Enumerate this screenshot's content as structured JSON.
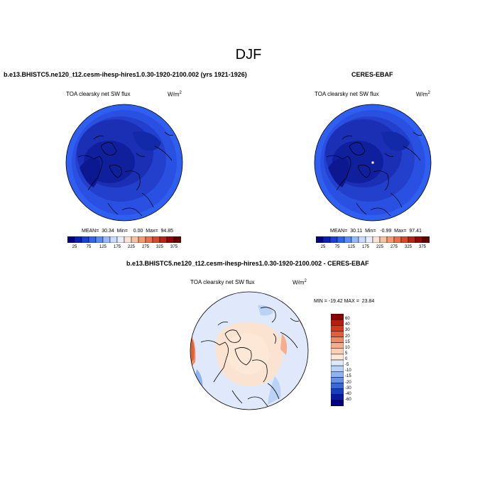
{
  "figure": {
    "title": "DJF"
  },
  "panels": [
    {
      "id": "model",
      "title": "b.e13.BHISTC5.ne120_t12.cesm-ihesp-hires1.0.30-1920-2100.002 (yrs 1921-1926)",
      "variable": "TOA clearsky net SW flux",
      "units_base": "W/m",
      "units_exp": "2",
      "stats": "MEAN=  30.34  Min=    0.00  Max=  94.85",
      "colorbar": {
        "levels": [
          "25",
          "75",
          "125",
          "175",
          "225",
          "275",
          "325",
          "375"
        ],
        "colors": [
          "#00007f",
          "#0a1eb4",
          "#1e40d2",
          "#3264e6",
          "#5a8cf0",
          "#96b9fa",
          "#c8dcff",
          "#e6eeff",
          "#fbe3d2",
          "#f8c1a3",
          "#f29a74",
          "#e8704c",
          "#d44a2d",
          "#b3261a",
          "#8c0a0a",
          "#600000"
        ]
      }
    },
    {
      "id": "obs",
      "title": "CERES-EBAF",
      "variable": "TOA clearsky net SW flux",
      "units_base": "W/m",
      "units_exp": "2",
      "stats": "MEAN=  30.11  Min=   -0.99  Max=  97.41",
      "colorbar": {
        "levels": [
          "25",
          "75",
          "125",
          "175",
          "225",
          "275",
          "325",
          "375"
        ],
        "colors": [
          "#00007f",
          "#0a1eb4",
          "#1e40d2",
          "#3264e6",
          "#5a8cf0",
          "#96b9fa",
          "#c8dcff",
          "#e6eeff",
          "#fbe3d2",
          "#f8c1a3",
          "#f29a74",
          "#e8704c",
          "#d44a2d",
          "#b3261a",
          "#8c0a0a",
          "#600000"
        ]
      }
    },
    {
      "id": "diff",
      "title": "b.e13.BHISTC5.ne120_t12.cesm-ihesp-hires1.0.30-1920-2100.002 - CERES-EBAF",
      "variable": "TOA clearsky net SW flux",
      "units_base": "W/m",
      "units_exp": "2",
      "stats": "MIN = -19.42 MAX =  23.84",
      "colorbar": {
        "levels": [
          "60",
          "40",
          "30",
          "20",
          "15",
          "10",
          "5",
          "0",
          "-5",
          "-10",
          "-15",
          "-20",
          "-30",
          "-40",
          "-60"
        ],
        "colors": [
          "#8b0000",
          "#b71c0c",
          "#d23a1e",
          "#e0603a",
          "#ec8a64",
          "#f4ae8c",
          "#f9d0b6",
          "#fde8d8",
          "#dce9fb",
          "#b9d2f6",
          "#8fb3ee",
          "#6890e4",
          "#3d66d6",
          "#1a3cbf",
          "#0a1a9c",
          "#00007a"
        ]
      }
    }
  ],
  "colors": {
    "ocean_deep": "#1a2aa8",
    "ocean_mid": "#2846d8",
    "ocean_rim": "#2f5ff0",
    "diff_pos": "#fbe3d2",
    "diff_neg": "#dfe9fb",
    "diff_red": "#ee8c66"
  }
}
